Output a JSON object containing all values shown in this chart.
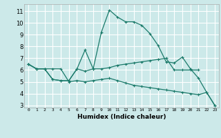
{
  "xlabel": "Humidex (Indice chaleur)",
  "ylabel": "",
  "x_ticks": [
    0,
    1,
    2,
    3,
    4,
    5,
    6,
    7,
    8,
    9,
    10,
    11,
    12,
    13,
    14,
    15,
    16,
    17,
    18,
    19,
    20,
    21,
    22,
    23
  ],
  "ylim": [
    2.8,
    11.6
  ],
  "xlim": [
    -0.5,
    23.5
  ],
  "background_color": "#cce9e9",
  "grid_color": "#ffffff",
  "line_color": "#1a7a6a",
  "yticks": [
    3,
    4,
    5,
    6,
    7,
    8,
    9,
    10,
    11
  ],
  "lines": [
    {
      "x": [
        0,
        1,
        2,
        3,
        4,
        5,
        6,
        7,
        8,
        9,
        10,
        11,
        12,
        13,
        14,
        15,
        16,
        17,
        18,
        19,
        20,
        21,
        22,
        23
      ],
      "y": [
        6.5,
        6.1,
        6.1,
        5.2,
        5.1,
        5.1,
        6.1,
        5.9,
        6.1,
        9.2,
        11.1,
        10.5,
        10.1,
        10.1,
        9.8,
        9.1,
        8.1,
        6.7,
        6.6,
        7.1,
        6.1,
        5.3,
        4.1,
        3.0
      ]
    },
    {
      "x": [
        0,
        1,
        2,
        3,
        4,
        5,
        6,
        7,
        8,
        9,
        10,
        11,
        12,
        13,
        14,
        15,
        16,
        17,
        18,
        19,
        20,
        21
      ],
      "y": [
        6.5,
        6.1,
        6.1,
        5.2,
        5.1,
        5.1,
        6.1,
        7.7,
        6.1,
        6.1,
        6.2,
        6.4,
        6.5,
        6.6,
        6.7,
        6.8,
        6.9,
        7.0,
        6.0,
        6.0,
        6.0,
        6.0
      ]
    },
    {
      "x": [
        0,
        1,
        2,
        3,
        4,
        5,
        6,
        7,
        8,
        9,
        10,
        11,
        12,
        13,
        14,
        15,
        16,
        17,
        18,
        19,
        20,
        21,
        22,
        23
      ],
      "y": [
        6.5,
        6.1,
        6.1,
        6.1,
        6.1,
        5.0,
        5.1,
        5.0,
        5.1,
        5.2,
        5.3,
        5.1,
        4.9,
        4.7,
        4.6,
        4.5,
        4.4,
        4.3,
        4.2,
        4.1,
        4.0,
        3.9,
        4.1,
        3.0
      ]
    }
  ]
}
